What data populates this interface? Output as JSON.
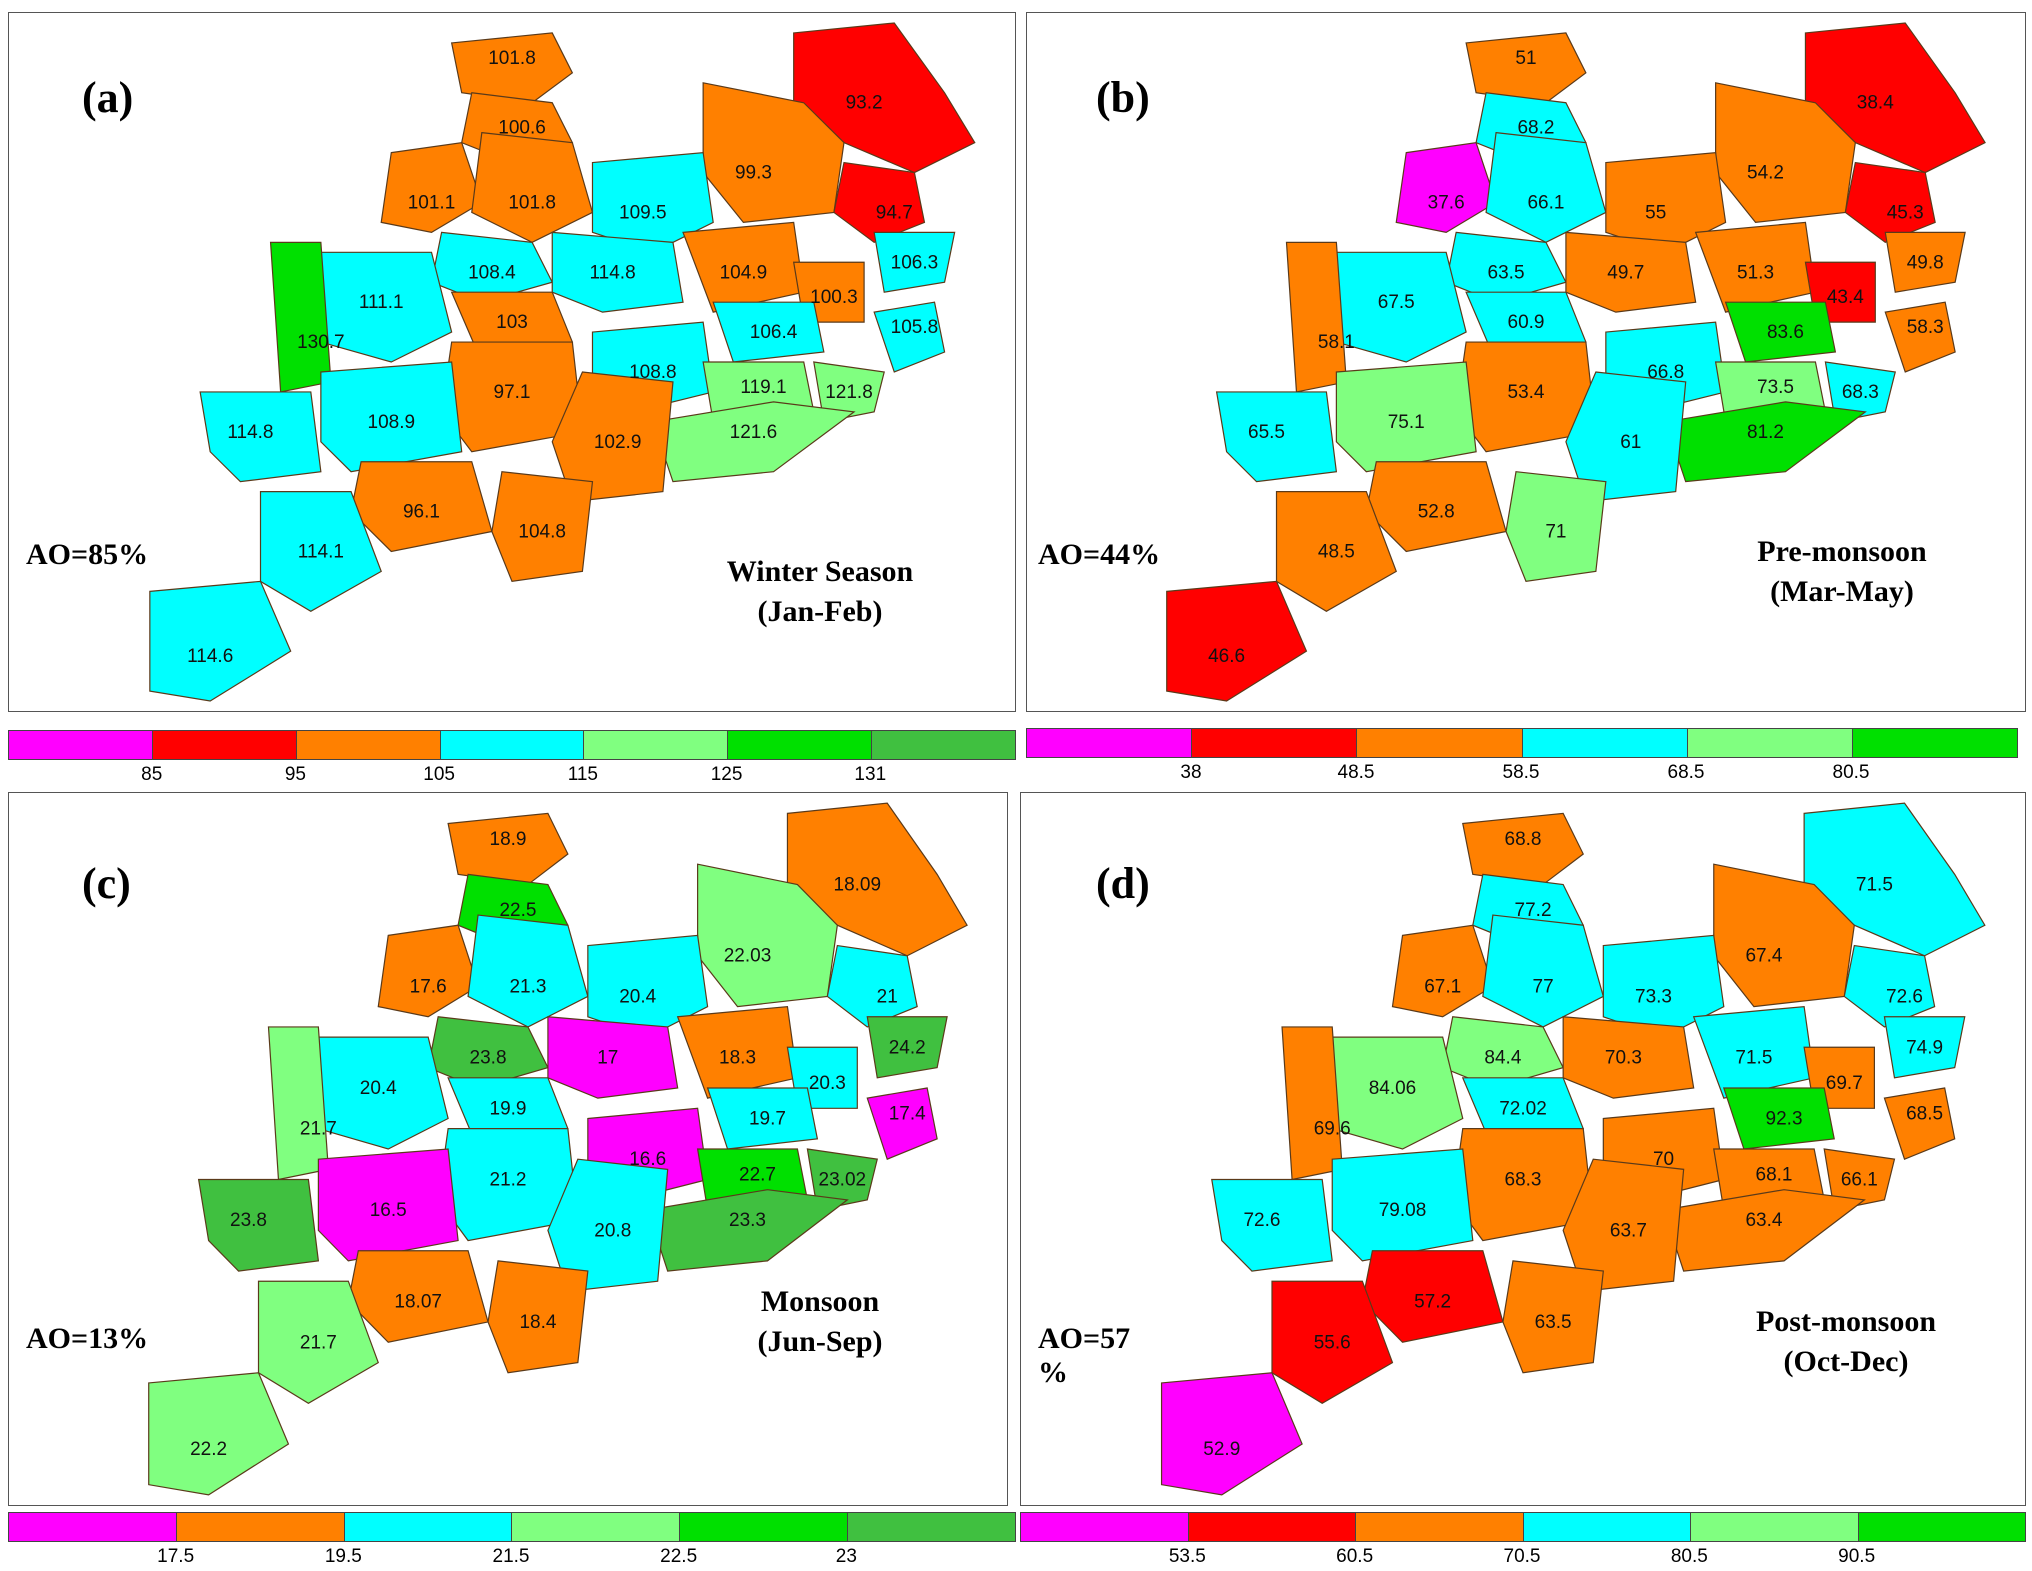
{
  "panels": [
    {
      "label": "(a)",
      "ao": "AO=85%",
      "season_line1": "Winter Season",
      "season_line2": "(Jan-Feb)",
      "colors": [
        "#ff00ff",
        "#ff0000",
        "#ff8000",
        "#00ffff",
        "#80ff80",
        "#00e000",
        "#40c040"
      ],
      "ticks": [
        "85",
        "95",
        "105",
        "115",
        "125",
        "131"
      ],
      "values": [
        "101.8",
        "100.6",
        "93.2",
        "99.3",
        "101.1",
        "101.8",
        "109.5",
        "94.7",
        "108.4",
        "114.8",
        "106.3",
        "111.1",
        "103",
        "104.9",
        "100.3",
        "130.7",
        "97.1",
        "106.4",
        "105.8",
        "108.8",
        "119.1",
        "121.8",
        "121.6",
        "114.8",
        "108.9",
        "102.9",
        "96.1",
        "104.8",
        "114.1",
        "114.6"
      ],
      "classes": [
        2,
        2,
        1,
        2,
        2,
        2,
        3,
        1,
        3,
        3,
        3,
        3,
        2,
        2,
        2,
        5,
        2,
        3,
        3,
        3,
        4,
        4,
        4,
        3,
        3,
        2,
        2,
        2,
        3,
        3
      ]
    },
    {
      "label": "(b)",
      "ao": "AO=44%",
      "season_line1": "Pre-monsoon",
      "season_line2": "(Mar-May)",
      "colors": [
        "#ff00ff",
        "#ff0000",
        "#ff8000",
        "#00ffff",
        "#80ff80",
        "#00e000"
      ],
      "ticks": [
        "38",
        "48.5",
        "58.5",
        "68.5",
        "80.5"
      ],
      "values": [
        "51",
        "68.2",
        "38.4",
        "54.2",
        "37.6",
        "66.1",
        "55",
        "45.3",
        "63.5",
        "49.7",
        "49.8",
        "67.5",
        "60.9",
        "51.3",
        "43.4",
        "58.1",
        "53.4",
        "83.6",
        "58.3",
        "66.8",
        "73.5",
        "68.3",
        "81.2",
        "65.5",
        "75.1",
        "61",
        "52.8",
        "71",
        "48.5",
        "46.6"
      ],
      "classes": [
        2,
        3,
        1,
        2,
        0,
        3,
        2,
        1,
        3,
        2,
        2,
        3,
        3,
        2,
        1,
        2,
        2,
        5,
        2,
        3,
        4,
        3,
        5,
        3,
        4,
        3,
        2,
        4,
        2,
        1
      ]
    },
    {
      "label": "(c)",
      "ao": "AO=13%",
      "season_line1": "Monsoon",
      "season_line2": "(Jun-Sep)",
      "colors": [
        "#ff00ff",
        "#ff8000",
        "#00ffff",
        "#80ff80",
        "#00e000",
        "#40c040"
      ],
      "ticks": [
        "17.5",
        "19.5",
        "21.5",
        "22.5",
        "23"
      ],
      "values": [
        "18.9",
        "22.5",
        "18.09",
        "22.03",
        "17.6",
        "21.3",
        "20.4",
        "21",
        "23.8",
        "17",
        "24.2",
        "20.4",
        "19.9",
        "18.3",
        "20.3",
        "21.7",
        "21.2",
        "19.7",
        "17.4",
        "16.6",
        "22.7",
        "23.02",
        "23.3",
        "23.8",
        "16.5",
        "20.8",
        "18.07",
        "18.4",
        "21.7",
        "22.2"
      ],
      "classes": [
        1,
        4,
        1,
        3,
        1,
        2,
        2,
        2,
        5,
        0,
        5,
        2,
        2,
        1,
        2,
        3,
        2,
        2,
        0,
        0,
        4,
        5,
        5,
        5,
        0,
        2,
        1,
        1,
        3,
        3
      ]
    },
    {
      "label": "(d)",
      "ao": "AO=57 %",
      "season_line1": "Post-monsoon",
      "season_line2": "(Oct-Dec)",
      "colors": [
        "#ff00ff",
        "#ff0000",
        "#ff8000",
        "#00ffff",
        "#80ff80",
        "#00e000"
      ],
      "ticks": [
        "53.5",
        "60.5",
        "70.5",
        "80.5",
        "90.5"
      ],
      "values": [
        "68.8",
        "77.2",
        "71.5",
        "67.4",
        "67.1",
        "77",
        "73.3",
        "72.6",
        "84.4",
        "70.3",
        "74.9",
        "84.06",
        "72.02",
        "71.5",
        "69.7",
        "69.6",
        "68.3",
        "92.3",
        "68.5",
        "70",
        "68.1",
        "66.1",
        "63.4",
        "72.6",
        "79.08",
        "63.7",
        "57.2",
        "63.5",
        "55.6",
        "52.9"
      ],
      "classes": [
        2,
        3,
        3,
        2,
        2,
        3,
        3,
        3,
        4,
        2,
        3,
        4,
        3,
        3,
        2,
        2,
        2,
        5,
        2,
        2,
        2,
        2,
        2,
        3,
        3,
        2,
        1,
        2,
        1,
        0
      ]
    }
  ]
}
